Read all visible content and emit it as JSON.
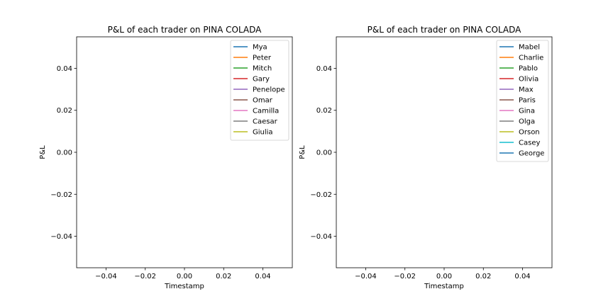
{
  "chart_data": [
    {
      "type": "line",
      "title": "P&L of each trader on PINA COLADA",
      "xlabel": "Timestamp",
      "ylabel": "P&L",
      "xlim": [
        -0.055,
        0.055
      ],
      "ylim": [
        -0.055,
        0.055
      ],
      "xticks": [
        -0.04,
        -0.02,
        0.0,
        0.02,
        0.04
      ],
      "xtick_labels": [
        "−0.04",
        "−0.02",
        "0.00",
        "0.02",
        "0.04"
      ],
      "yticks": [
        0.04,
        0.02,
        0.0,
        -0.02,
        -0.04
      ],
      "ytick_labels": [
        "0.04",
        "0.02",
        "0.00",
        "−0.02",
        "−0.04"
      ],
      "grid": false,
      "legend_position": "top-right",
      "series": [
        {
          "name": "Mya",
          "color": "#1f77b4",
          "x": [],
          "y": []
        },
        {
          "name": "Peter",
          "color": "#ff7f0e",
          "x": [],
          "y": []
        },
        {
          "name": "Mitch",
          "color": "#2ca02c",
          "x": [],
          "y": []
        },
        {
          "name": "Gary",
          "color": "#d62728",
          "x": [],
          "y": []
        },
        {
          "name": "Penelope",
          "color": "#9467bd",
          "x": [],
          "y": []
        },
        {
          "name": "Omar",
          "color": "#8c564b",
          "x": [],
          "y": []
        },
        {
          "name": "Camilla",
          "color": "#e377c2",
          "x": [],
          "y": []
        },
        {
          "name": "Caesar",
          "color": "#7f7f7f",
          "x": [],
          "y": []
        },
        {
          "name": "Giulia",
          "color": "#bcbd22",
          "x": [],
          "y": []
        }
      ]
    },
    {
      "type": "line",
      "title": "P&L of each trader on PINA COLADA",
      "xlabel": "Timestamp",
      "ylabel": "P&L",
      "xlim": [
        -0.055,
        0.055
      ],
      "ylim": [
        -0.055,
        0.055
      ],
      "xticks": [
        -0.04,
        -0.02,
        0.0,
        0.02,
        0.04
      ],
      "xtick_labels": [
        "−0.04",
        "−0.02",
        "0.00",
        "0.02",
        "0.04"
      ],
      "yticks": [
        0.04,
        0.02,
        0.0,
        -0.02,
        -0.04
      ],
      "ytick_labels": [
        "0.04",
        "0.02",
        "0.00",
        "−0.02",
        "−0.04"
      ],
      "grid": false,
      "legend_position": "top-right",
      "series": [
        {
          "name": "Mabel",
          "color": "#1f77b4",
          "x": [],
          "y": []
        },
        {
          "name": "Charlie",
          "color": "#ff7f0e",
          "x": [],
          "y": []
        },
        {
          "name": "Pablo",
          "color": "#2ca02c",
          "x": [],
          "y": []
        },
        {
          "name": "Olivia",
          "color": "#d62728",
          "x": [],
          "y": []
        },
        {
          "name": "Max",
          "color": "#9467bd",
          "x": [],
          "y": []
        },
        {
          "name": "Paris",
          "color": "#8c564b",
          "x": [],
          "y": []
        },
        {
          "name": "Gina",
          "color": "#e377c2",
          "x": [],
          "y": []
        },
        {
          "name": "Olga",
          "color": "#7f7f7f",
          "x": [],
          "y": []
        },
        {
          "name": "Orson",
          "color": "#bcbd22",
          "x": [],
          "y": []
        },
        {
          "name": "Casey",
          "color": "#17becf",
          "x": [],
          "y": []
        },
        {
          "name": "George",
          "color": "#1f77b4",
          "x": [],
          "y": []
        }
      ]
    }
  ]
}
